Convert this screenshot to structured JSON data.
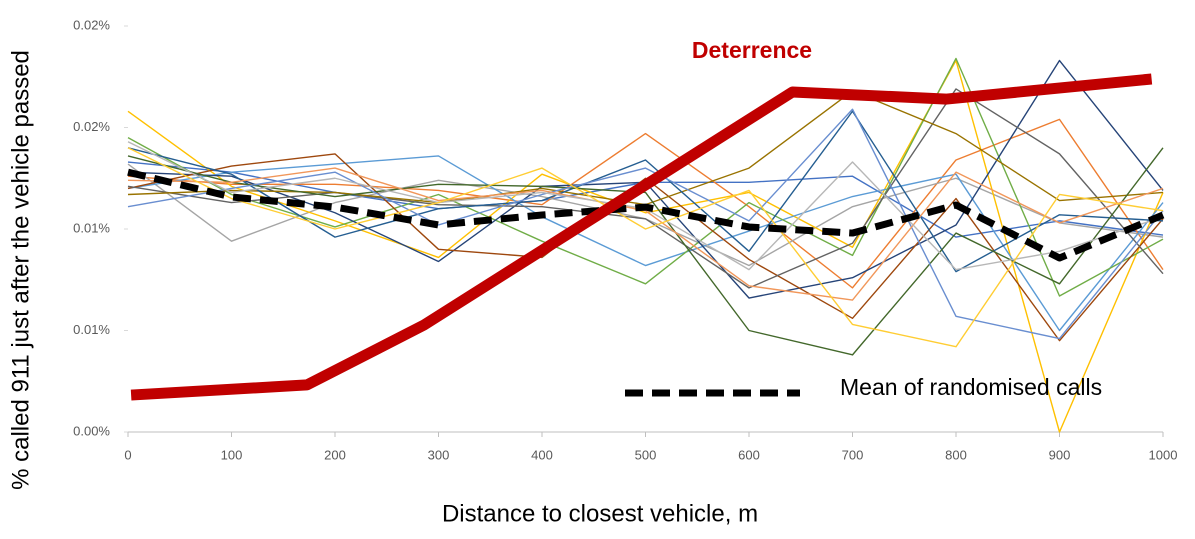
{
  "chart_data": {
    "type": "line",
    "x_label": "Distance to closest vehicle, m",
    "y_label": "% called 911 just after the vehicle passed",
    "x": [
      0,
      100,
      200,
      300,
      400,
      500,
      600,
      700,
      800,
      900,
      1000
    ],
    "xlim": [
      0,
      1000
    ],
    "xticks": [
      0,
      100,
      200,
      300,
      400,
      500,
      600,
      700,
      800,
      900,
      1000
    ],
    "ylim": [
      0,
      0.02
    ],
    "yticks": [
      {
        "value": 0,
        "label": "0.00%"
      },
      {
        "value": 0.005,
        "label": "0.01%"
      },
      {
        "value": 0.01,
        "label": "0.01%"
      },
      {
        "value": 0.015,
        "label": "0.02%"
      },
      {
        "value": 0.02,
        "label": "0.02%"
      }
    ],
    "series": [
      {
        "color": "#4472c4",
        "values": [
          0.0133,
          0.0128,
          0.0118,
          0.011,
          0.0114,
          0.0123,
          0.0123,
          0.0126,
          0.0096,
          0.0104,
          0.0097
        ]
      },
      {
        "color": "#ed7d31",
        "values": [
          0.0126,
          0.0122,
          0.0122,
          0.0119,
          0.0112,
          0.0147,
          0.0111,
          0.0071,
          0.0134,
          0.0154,
          0.008
        ]
      },
      {
        "color": "#a5a5a5",
        "values": [
          0.0132,
          0.0094,
          0.0113,
          0.0124,
          0.0116,
          0.0105,
          0.0082,
          0.0111,
          0.0125,
          0.0103,
          0.0096
        ]
      },
      {
        "color": "#ffc000",
        "values": [
          0.0158,
          0.0121,
          0.0104,
          0.0086,
          0.0127,
          0.0108,
          0.0118,
          0.0091,
          0.0183,
          0.0,
          0.0118
        ]
      },
      {
        "color": "#5b9bd5",
        "values": [
          0.012,
          0.0128,
          0.0132,
          0.0136,
          0.0106,
          0.0082,
          0.0099,
          0.0116,
          0.0127,
          0.005,
          0.0113
        ]
      },
      {
        "color": "#70ad47",
        "values": [
          0.0145,
          0.0117,
          0.0101,
          0.0117,
          0.0094,
          0.0073,
          0.0113,
          0.0087,
          0.0184,
          0.0067,
          0.0095
        ]
      },
      {
        "color": "#264478",
        "values": [
          0.0128,
          0.0126,
          0.0108,
          0.0084,
          0.0121,
          0.0123,
          0.0066,
          0.0076,
          0.0102,
          0.0183,
          0.0119
        ]
      },
      {
        "color": "#9e480e",
        "values": [
          0.012,
          0.0131,
          0.0137,
          0.009,
          0.0086,
          0.0125,
          0.0085,
          0.0056,
          0.0115,
          0.0045,
          0.0105
        ]
      },
      {
        "color": "#636363",
        "values": [
          0.0121,
          0.0113,
          0.0118,
          0.0112,
          0.0111,
          0.0105,
          0.0071,
          0.0093,
          0.0169,
          0.0137,
          0.0078
        ]
      },
      {
        "color": "#997300",
        "values": [
          0.0117,
          0.0119,
          0.0118,
          0.0113,
          0.012,
          0.0112,
          0.013,
          0.0168,
          0.0147,
          0.0114,
          0.0118
        ]
      },
      {
        "color": "#255e91",
        "values": [
          0.014,
          0.0127,
          0.0096,
          0.011,
          0.0114,
          0.0134,
          0.0089,
          0.0158,
          0.0079,
          0.0107,
          0.0104
        ]
      },
      {
        "color": "#43682b",
        "values": [
          0.0136,
          0.0123,
          0.0116,
          0.0122,
          0.0121,
          0.0118,
          0.005,
          0.0038,
          0.0098,
          0.0073,
          0.014
        ]
      },
      {
        "color": "#698ed0",
        "values": [
          0.0111,
          0.012,
          0.0128,
          0.0102,
          0.0117,
          0.013,
          0.0104,
          0.0159,
          0.0057,
          0.0046,
          0.0109
        ]
      },
      {
        "color": "#f1975a",
        "values": [
          0.0124,
          0.0123,
          0.013,
          0.0114,
          0.0119,
          0.0109,
          0.0072,
          0.0065,
          0.0128,
          0.0103,
          0.012
        ]
      },
      {
        "color": "#b7b7b7",
        "values": [
          0.0143,
          0.0118,
          0.0125,
          0.0113,
          0.0118,
          0.011,
          0.008,
          0.0133,
          0.008,
          0.0089,
          0.0106
        ]
      },
      {
        "color": "#ffcd33",
        "values": [
          0.014,
          0.0115,
          0.01,
          0.0113,
          0.013,
          0.01,
          0.0119,
          0.0053,
          0.0042,
          0.0117,
          0.0109
        ]
      },
      {
        "name": "Mean of randomised calls",
        "color": "#000000",
        "dashed": true,
        "values": [
          0.0128,
          0.01158,
          0.01108,
          0.0102,
          0.01069,
          0.01108,
          0.0101,
          0.0098,
          0.01118,
          0.00857,
          0.01069
        ]
      },
      {
        "name": "Deterrence",
        "color": "#c00000",
        "x": [
          3,
          173,
          286,
          642,
          791,
          989
        ],
        "values": [
          0.00182,
          0.00232,
          0.00527,
          0.01675,
          0.0164,
          0.01739
        ]
      }
    ]
  }
}
